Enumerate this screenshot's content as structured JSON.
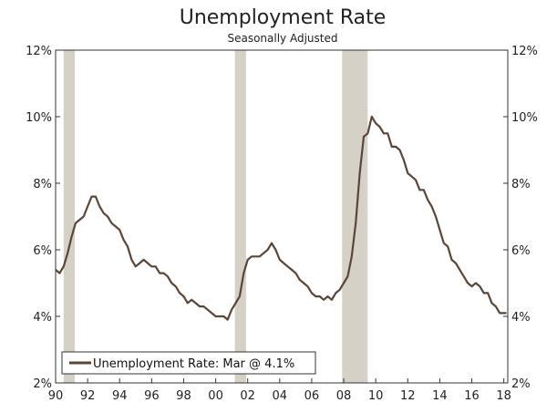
{
  "chart_data": {
    "type": "line",
    "title": "Unemployment Rate",
    "subtitle": "Seasonally Adjusted",
    "xlabel": "",
    "ylabel": "",
    "xlim": [
      1990,
      2018.25
    ],
    "ylim": [
      2,
      12
    ],
    "x_ticks": [
      1990,
      1992,
      1994,
      1996,
      1998,
      2000,
      2002,
      2004,
      2006,
      2008,
      2010,
      2012,
      2014,
      2016,
      2018
    ],
    "x_tick_labels": [
      "90",
      "92",
      "94",
      "96",
      "98",
      "00",
      "02",
      "04",
      "06",
      "08",
      "10",
      "12",
      "14",
      "16",
      "18"
    ],
    "y_ticks": [
      2,
      4,
      6,
      8,
      10,
      12
    ],
    "y_tick_labels": [
      "2%",
      "4%",
      "6%",
      "8%",
      "10%",
      "12%"
    ],
    "y_axes": "both",
    "grid": false,
    "legend_position": "bottom-left",
    "colors": {
      "line": "#5a4638",
      "recession": "#d6d1c6",
      "axis": "#333333"
    },
    "recessions": [
      {
        "start": 1990.5,
        "end": 1991.2
      },
      {
        "start": 2001.2,
        "end": 2001.9
      },
      {
        "start": 2007.9,
        "end": 2009.5
      }
    ],
    "series": [
      {
        "name": "Unemployment Rate: Mar @ 4.1%",
        "x": [
          1990.0,
          1990.25,
          1990.5,
          1990.75,
          1991.0,
          1991.25,
          1991.5,
          1991.75,
          1992.0,
          1992.25,
          1992.5,
          1992.75,
          1993.0,
          1993.25,
          1993.5,
          1993.75,
          1994.0,
          1994.25,
          1994.5,
          1994.75,
          1995.0,
          1995.25,
          1995.5,
          1995.75,
          1996.0,
          1996.25,
          1996.5,
          1996.75,
          1997.0,
          1997.25,
          1997.5,
          1997.75,
          1998.0,
          1998.25,
          1998.5,
          1998.75,
          1999.0,
          1999.25,
          1999.5,
          1999.75,
          2000.0,
          2000.25,
          2000.5,
          2000.75,
          2001.0,
          2001.25,
          2001.5,
          2001.75,
          2002.0,
          2002.25,
          2002.5,
          2002.75,
          2003.0,
          2003.25,
          2003.5,
          2003.75,
          2004.0,
          2004.25,
          2004.5,
          2004.75,
          2005.0,
          2005.25,
          2005.5,
          2005.75,
          2006.0,
          2006.25,
          2006.5,
          2006.75,
          2007.0,
          2007.25,
          2007.5,
          2007.75,
          2008.0,
          2008.25,
          2008.5,
          2008.75,
          2009.0,
          2009.25,
          2009.5,
          2009.75,
          2010.0,
          2010.25,
          2010.5,
          2010.75,
          2011.0,
          2011.25,
          2011.5,
          2011.75,
          2012.0,
          2012.25,
          2012.5,
          2012.75,
          2013.0,
          2013.25,
          2013.5,
          2013.75,
          2014.0,
          2014.25,
          2014.5,
          2014.75,
          2015.0,
          2015.25,
          2015.5,
          2015.75,
          2016.0,
          2016.25,
          2016.5,
          2016.75,
          2017.0,
          2017.25,
          2017.5,
          2017.75,
          2018.0,
          2018.17
        ],
        "y": [
          5.4,
          5.3,
          5.5,
          5.9,
          6.4,
          6.8,
          6.9,
          7.0,
          7.3,
          7.6,
          7.6,
          7.3,
          7.1,
          7.0,
          6.8,
          6.7,
          6.6,
          6.3,
          6.1,
          5.7,
          5.5,
          5.6,
          5.7,
          5.6,
          5.5,
          5.5,
          5.3,
          5.3,
          5.2,
          5.0,
          4.9,
          4.7,
          4.6,
          4.4,
          4.5,
          4.4,
          4.3,
          4.3,
          4.2,
          4.1,
          4.0,
          4.0,
          4.0,
          3.9,
          4.2,
          4.4,
          4.6,
          5.3,
          5.7,
          5.8,
          5.8,
          5.8,
          5.9,
          6.0,
          6.2,
          6.0,
          5.7,
          5.6,
          5.5,
          5.4,
          5.3,
          5.1,
          5.0,
          4.9,
          4.7,
          4.6,
          4.6,
          4.5,
          4.6,
          4.5,
          4.7,
          4.8,
          5.0,
          5.2,
          5.8,
          6.8,
          8.3,
          9.4,
          9.5,
          10.0,
          9.8,
          9.7,
          9.5,
          9.5,
          9.1,
          9.1,
          9.0,
          8.7,
          8.3,
          8.2,
          8.1,
          7.8,
          7.8,
          7.5,
          7.3,
          7.0,
          6.6,
          6.2,
          6.1,
          5.7,
          5.6,
          5.4,
          5.2,
          5.0,
          4.9,
          5.0,
          4.9,
          4.7,
          4.7,
          4.4,
          4.3,
          4.1,
          4.1,
          4.1
        ]
      }
    ]
  }
}
